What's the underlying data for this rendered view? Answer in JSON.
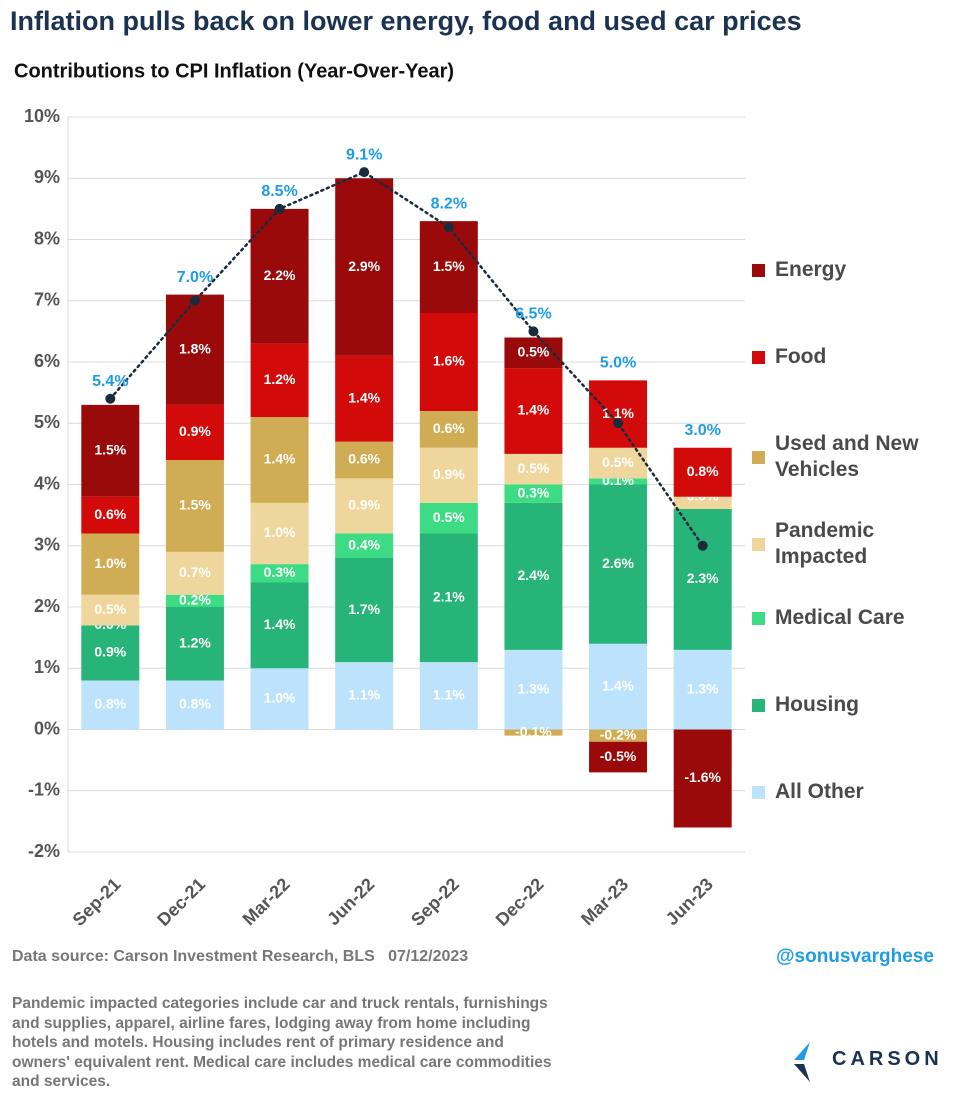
{
  "chart_data": {
    "type": "stacked-bar",
    "title": "Inflation pulls back on lower energy, food and used car prices",
    "subtitle": "Contributions to CPI Inflation (Year-Over-Year)",
    "categories": [
      "Sep-21",
      "Dec-21",
      "Mar-22",
      "Jun-22",
      "Sep-22",
      "Dec-22",
      "Mar-23",
      "Jun-23"
    ],
    "ylim": [
      -2,
      10
    ],
    "yticks": [
      {
        "value": -2,
        "label": "-2%"
      },
      {
        "value": -1,
        "label": "-1%"
      },
      {
        "value": 0,
        "label": "0%"
      },
      {
        "value": 1,
        "label": "1%"
      },
      {
        "value": 2,
        "label": "2%"
      },
      {
        "value": 3,
        "label": "3%"
      },
      {
        "value": 4,
        "label": "4%"
      },
      {
        "value": 5,
        "label": "5%"
      },
      {
        "value": 6,
        "label": "6%"
      },
      {
        "value": 7,
        "label": "7%"
      },
      {
        "value": 8,
        "label": "8%"
      },
      {
        "value": 9,
        "label": "9%"
      },
      {
        "value": 10,
        "label": "10%"
      }
    ],
    "grid": true,
    "series": [
      {
        "name": "Energy",
        "color": "#9a0a0a",
        "values": [
          1.5,
          1.8,
          2.2,
          2.9,
          1.5,
          0.5,
          -0.5,
          -1.6
        ],
        "value_labels": [
          "1.5%",
          "1.8%",
          "2.2%",
          "2.9%",
          "1.5%",
          "0.5%",
          "-0.5%",
          "-1.6%"
        ]
      },
      {
        "name": "Food",
        "color": "#d20a0a",
        "values": [
          0.6,
          0.9,
          1.2,
          1.4,
          1.6,
          1.4,
          1.1,
          0.8
        ],
        "value_labels": [
          "0.6%",
          "0.9%",
          "1.2%",
          "1.4%",
          "1.6%",
          "1.4%",
          "1.1%",
          "0.8%"
        ]
      },
      {
        "name": "Used and New Vehicles",
        "color": "#d0ad55",
        "values": [
          1.0,
          1.5,
          1.4,
          0.6,
          0.6,
          -0.1,
          -0.2,
          0.0
        ],
        "value_labels": [
          "1.0%",
          "1.5%",
          "1.4%",
          "0.6%",
          "0.6%",
          "-0.1%",
          "-0.2%",
          "0.0%"
        ]
      },
      {
        "name": "Pandemic Impacted",
        "color": "#eed69c",
        "values": [
          0.5,
          0.7,
          1.0,
          0.9,
          0.9,
          0.5,
          0.5,
          0.2
        ],
        "value_labels": [
          "0.5%",
          "0.7%",
          "1.0%",
          "0.9%",
          "0.9%",
          "0.5%",
          "0.5%",
          null
        ]
      },
      {
        "name": "Medical Care",
        "color": "#3ddc84",
        "values": [
          0.0,
          0.2,
          0.3,
          0.4,
          0.5,
          0.3,
          0.1,
          0.0
        ],
        "value_labels": [
          "0.0%",
          "0.2%",
          "0.3%",
          "0.4%",
          "0.5%",
          "0.3%",
          "0.1%",
          null
        ]
      },
      {
        "name": "Housing",
        "color": "#26b478",
        "values": [
          0.9,
          1.2,
          1.4,
          1.7,
          2.1,
          2.4,
          2.6,
          2.3
        ],
        "value_labels": [
          "0.9%",
          "1.2%",
          "1.4%",
          "1.7%",
          "2.1%",
          "2.4%",
          "2.6%",
          "2.3%"
        ]
      },
      {
        "name": "All Other",
        "color": "#bce3fb",
        "values": [
          0.8,
          0.8,
          1.0,
          1.1,
          1.1,
          1.3,
          1.4,
          1.3
        ],
        "value_labels": [
          "0.8%",
          "0.8%",
          "1.0%",
          "1.1%",
          "1.1%",
          "1.3%",
          "1.4%",
          "1.3%"
        ]
      }
    ],
    "totals": {
      "color": "#1a2b3c",
      "label_color": "#1e9de6",
      "values": [
        5.4,
        7.0,
        8.5,
        9.1,
        8.2,
        6.5,
        5.0,
        3.0
      ],
      "value_labels": [
        "5.4%",
        "7.0%",
        "8.5%",
        "9.1%",
        "8.2%",
        "6.5%",
        "5.0%",
        "3.0%"
      ]
    }
  },
  "footer": {
    "source": "Data source: Carson Investment Research, BLS   07/12/2023",
    "handle": "@sonusvarghese",
    "note": "Pandemic impacted categories include car and truck rentals, furnishings and supplies, apparel, airline fares, lodging away from home including hotels and motels. Housing includes rent of primary residence and owners' equivalent rent. Medical care includes medical care commodities and services.",
    "logo": "CARSON"
  }
}
